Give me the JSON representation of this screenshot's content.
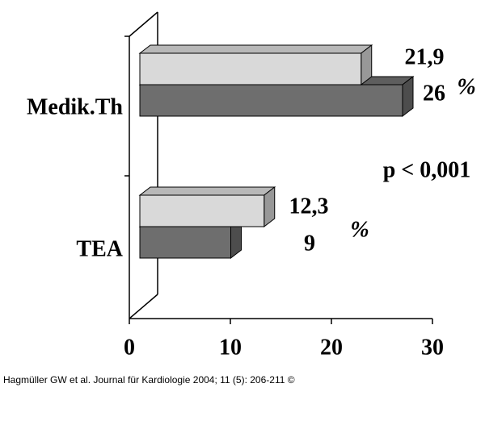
{
  "chart_data": {
    "type": "bar3d",
    "categories": [
      "Medik.Th",
      "TEA"
    ],
    "series": [
      {
        "color": "#d9d9d9",
        "values": [
          21.9,
          12.3
        ],
        "value_labels": [
          "21,9",
          "12,3"
        ]
      },
      {
        "color": "#6e6e6e",
        "values": [
          26,
          9
        ],
        "value_labels": [
          "26",
          "9"
        ]
      }
    ],
    "xlim": [
      0,
      30
    ],
    "xticks": [
      0,
      10,
      20,
      30
    ],
    "annotations": [
      "%",
      "%",
      "p < 0,001"
    ],
    "caption": "Hagmüller GW et al. Journal für Kardiologie 2004; 11 (5): 206-211 ©"
  }
}
